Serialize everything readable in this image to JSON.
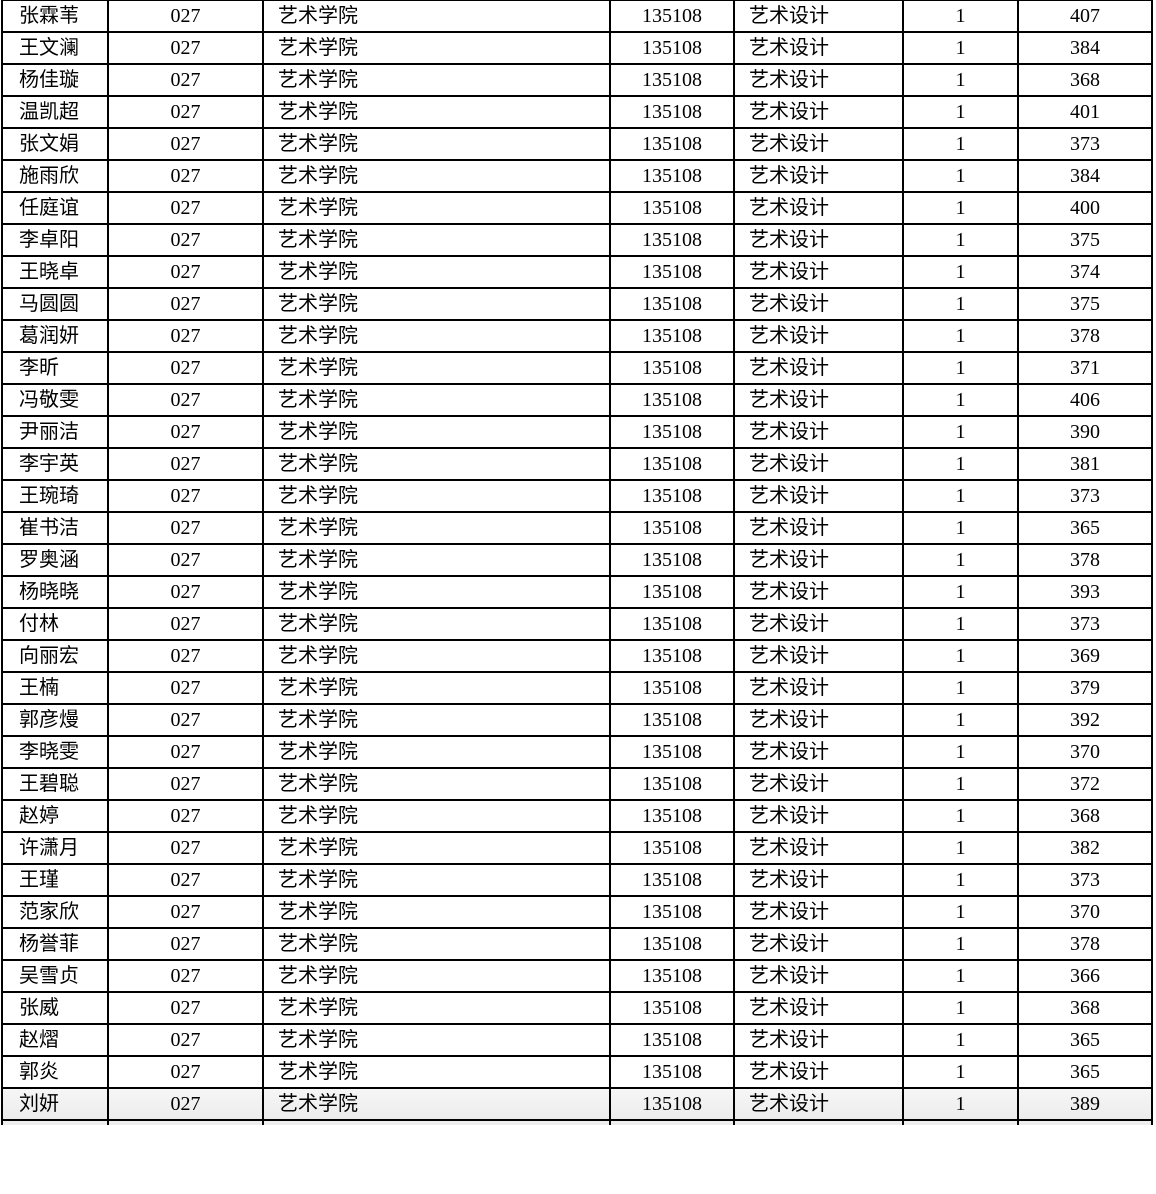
{
  "rows": [
    {
      "name": "张霖苇",
      "dept_code": "027",
      "dept": "艺术学院",
      "major_code": "135108",
      "major": "艺术设计",
      "count": "1",
      "score": "407"
    },
    {
      "name": "王文澜",
      "dept_code": "027",
      "dept": "艺术学院",
      "major_code": "135108",
      "major": "艺术设计",
      "count": "1",
      "score": "384"
    },
    {
      "name": "杨佳璇",
      "dept_code": "027",
      "dept": "艺术学院",
      "major_code": "135108",
      "major": "艺术设计",
      "count": "1",
      "score": "368"
    },
    {
      "name": "温凯超",
      "dept_code": "027",
      "dept": "艺术学院",
      "major_code": "135108",
      "major": "艺术设计",
      "count": "1",
      "score": "401"
    },
    {
      "name": "张文娟",
      "dept_code": "027",
      "dept": "艺术学院",
      "major_code": "135108",
      "major": "艺术设计",
      "count": "1",
      "score": "373"
    },
    {
      "name": "施雨欣",
      "dept_code": "027",
      "dept": "艺术学院",
      "major_code": "135108",
      "major": "艺术设计",
      "count": "1",
      "score": "384"
    },
    {
      "name": "任庭谊",
      "dept_code": "027",
      "dept": "艺术学院",
      "major_code": "135108",
      "major": "艺术设计",
      "count": "1",
      "score": "400"
    },
    {
      "name": "李卓阳",
      "dept_code": "027",
      "dept": "艺术学院",
      "major_code": "135108",
      "major": "艺术设计",
      "count": "1",
      "score": "375"
    },
    {
      "name": "王晓卓",
      "dept_code": "027",
      "dept": "艺术学院",
      "major_code": "135108",
      "major": "艺术设计",
      "count": "1",
      "score": "374"
    },
    {
      "name": "马圆圆",
      "dept_code": "027",
      "dept": "艺术学院",
      "major_code": "135108",
      "major": "艺术设计",
      "count": "1",
      "score": "375"
    },
    {
      "name": "葛润妍",
      "dept_code": "027",
      "dept": "艺术学院",
      "major_code": "135108",
      "major": "艺术设计",
      "count": "1",
      "score": "378"
    },
    {
      "name": "李昕",
      "dept_code": "027",
      "dept": "艺术学院",
      "major_code": "135108",
      "major": "艺术设计",
      "count": "1",
      "score": "371"
    },
    {
      "name": "冯敬雯",
      "dept_code": "027",
      "dept": "艺术学院",
      "major_code": "135108",
      "major": "艺术设计",
      "count": "1",
      "score": "406"
    },
    {
      "name": "尹丽洁",
      "dept_code": "027",
      "dept": "艺术学院",
      "major_code": "135108",
      "major": "艺术设计",
      "count": "1",
      "score": "390"
    },
    {
      "name": "李宇英",
      "dept_code": "027",
      "dept": "艺术学院",
      "major_code": "135108",
      "major": "艺术设计",
      "count": "1",
      "score": "381"
    },
    {
      "name": "王琬琦",
      "dept_code": "027",
      "dept": "艺术学院",
      "major_code": "135108",
      "major": "艺术设计",
      "count": "1",
      "score": "373"
    },
    {
      "name": "崔书洁",
      "dept_code": "027",
      "dept": "艺术学院",
      "major_code": "135108",
      "major": "艺术设计",
      "count": "1",
      "score": "365"
    },
    {
      "name": "罗奥涵",
      "dept_code": "027",
      "dept": "艺术学院",
      "major_code": "135108",
      "major": "艺术设计",
      "count": "1",
      "score": "378"
    },
    {
      "name": "杨晓晓",
      "dept_code": "027",
      "dept": "艺术学院",
      "major_code": "135108",
      "major": "艺术设计",
      "count": "1",
      "score": "393"
    },
    {
      "name": "付林",
      "dept_code": "027",
      "dept": "艺术学院",
      "major_code": "135108",
      "major": "艺术设计",
      "count": "1",
      "score": "373"
    },
    {
      "name": "向丽宏",
      "dept_code": "027",
      "dept": "艺术学院",
      "major_code": "135108",
      "major": "艺术设计",
      "count": "1",
      "score": "369"
    },
    {
      "name": "王楠",
      "dept_code": "027",
      "dept": "艺术学院",
      "major_code": "135108",
      "major": "艺术设计",
      "count": "1",
      "score": "379"
    },
    {
      "name": "郭彦熳",
      "dept_code": "027",
      "dept": "艺术学院",
      "major_code": "135108",
      "major": "艺术设计",
      "count": "1",
      "score": "392"
    },
    {
      "name": "李晓雯",
      "dept_code": "027",
      "dept": "艺术学院",
      "major_code": "135108",
      "major": "艺术设计",
      "count": "1",
      "score": "370"
    },
    {
      "name": "王碧聪",
      "dept_code": "027",
      "dept": "艺术学院",
      "major_code": "135108",
      "major": "艺术设计",
      "count": "1",
      "score": "372"
    },
    {
      "name": "赵婷",
      "dept_code": "027",
      "dept": "艺术学院",
      "major_code": "135108",
      "major": "艺术设计",
      "count": "1",
      "score": "368"
    },
    {
      "name": "许潇月",
      "dept_code": "027",
      "dept": "艺术学院",
      "major_code": "135108",
      "major": "艺术设计",
      "count": "1",
      "score": "382"
    },
    {
      "name": "王瑾",
      "dept_code": "027",
      "dept": "艺术学院",
      "major_code": "135108",
      "major": "艺术设计",
      "count": "1",
      "score": "373"
    },
    {
      "name": "范家欣",
      "dept_code": "027",
      "dept": "艺术学院",
      "major_code": "135108",
      "major": "艺术设计",
      "count": "1",
      "score": "370"
    },
    {
      "name": "杨誉菲",
      "dept_code": "027",
      "dept": "艺术学院",
      "major_code": "135108",
      "major": "艺术设计",
      "count": "1",
      "score": "378"
    },
    {
      "name": "吴雪贞",
      "dept_code": "027",
      "dept": "艺术学院",
      "major_code": "135108",
      "major": "艺术设计",
      "count": "1",
      "score": "366"
    },
    {
      "name": "张威",
      "dept_code": "027",
      "dept": "艺术学院",
      "major_code": "135108",
      "major": "艺术设计",
      "count": "1",
      "score": "368"
    },
    {
      "name": "赵熠",
      "dept_code": "027",
      "dept": "艺术学院",
      "major_code": "135108",
      "major": "艺术设计",
      "count": "1",
      "score": "365"
    },
    {
      "name": "郭炎",
      "dept_code": "027",
      "dept": "艺术学院",
      "major_code": "135108",
      "major": "艺术设计",
      "count": "1",
      "score": "365"
    },
    {
      "name": "刘妍",
      "dept_code": "027",
      "dept": "艺术学院",
      "major_code": "135108",
      "major": "艺术设计",
      "count": "1",
      "score": "389"
    }
  ]
}
